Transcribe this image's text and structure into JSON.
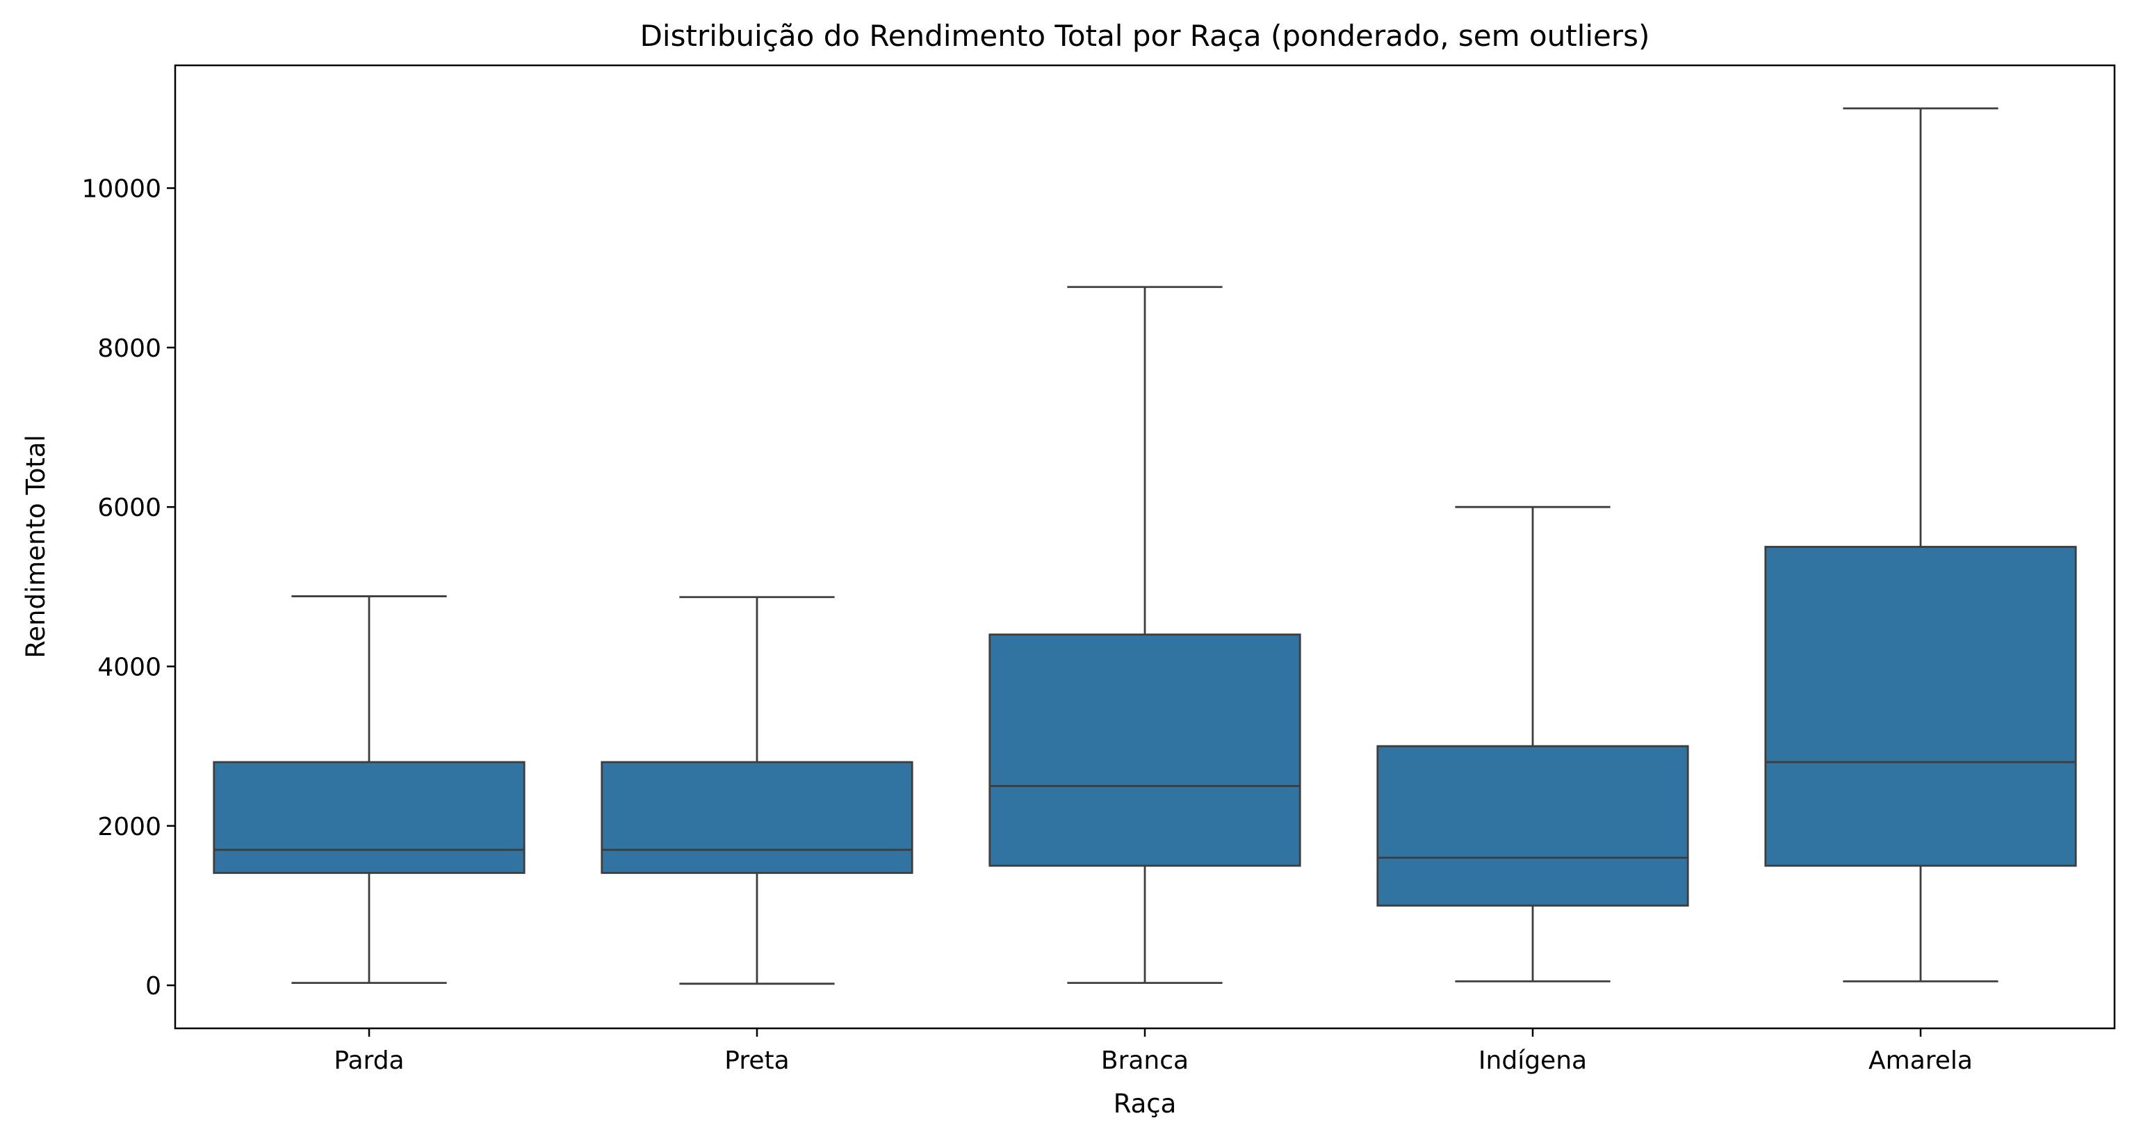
{
  "chart_data": {
    "type": "box",
    "title": "Distribuição do Rendimento Total por Raça (ponderado, sem outliers)",
    "xlabel": "Raça",
    "ylabel": "Rendimento Total",
    "categories": [
      "Parda",
      "Preta",
      "Branca",
      "Indígena",
      "Amarela"
    ],
    "boxes": [
      {
        "category": "Parda",
        "whisker_low": 30,
        "q1": 1410,
        "median": 1700,
        "q3": 2800,
        "whisker_high": 4880
      },
      {
        "category": "Preta",
        "whisker_low": 20,
        "q1": 1410,
        "median": 1700,
        "q3": 2800,
        "whisker_high": 4870
      },
      {
        "category": "Branca",
        "whisker_low": 30,
        "q1": 1500,
        "median": 2500,
        "q3": 4400,
        "whisker_high": 8760
      },
      {
        "category": "Indígena",
        "whisker_low": 50,
        "q1": 1000,
        "median": 1600,
        "q3": 3000,
        "whisker_high": 6000
      },
      {
        "category": "Amarela",
        "whisker_low": 50,
        "q1": 1500,
        "median": 2800,
        "q3": 5500,
        "whisker_high": 11000
      }
    ],
    "ylim": [
      -540,
      11540
    ],
    "yticks": [
      0,
      2000,
      4000,
      6000,
      8000,
      10000
    ],
    "ytick_labels": [
      "0",
      "2000",
      "4000",
      "6000",
      "8000",
      "10000"
    ],
    "grid": false,
    "colors": {
      "box_fill": "#3274a1",
      "line": "#3d3d3d",
      "axis": "#000000"
    }
  }
}
